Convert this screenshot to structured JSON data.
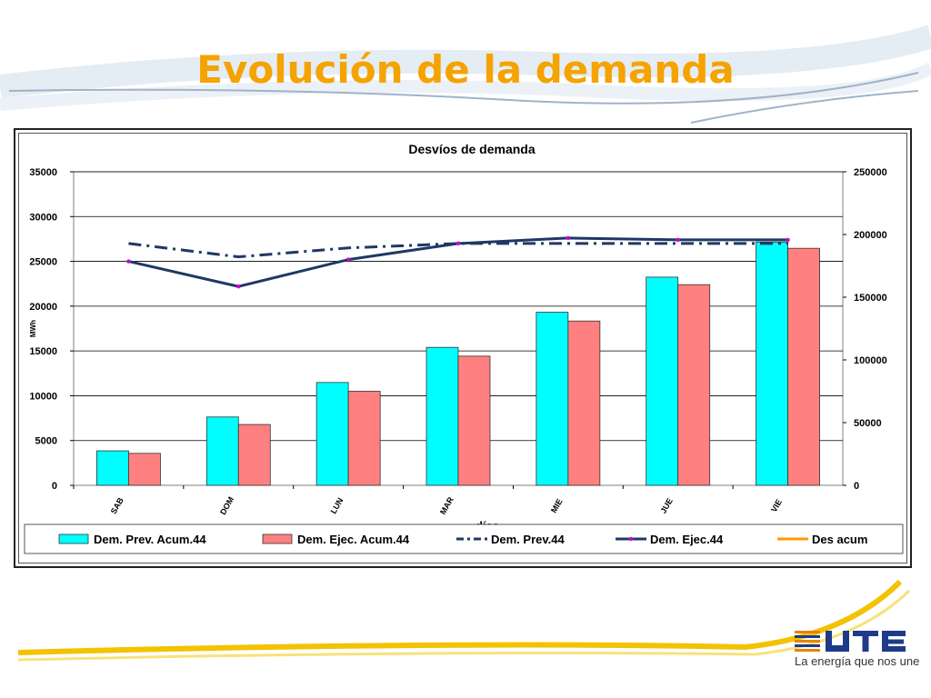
{
  "slide": {
    "title": "Evolución de la demanda"
  },
  "brand": {
    "name": "UTE",
    "tagline": "La energía que nos une",
    "colors": {
      "title": "#f5a300",
      "stripe": "#f3c200",
      "logo_blue": "#1f3a8a",
      "logo_orange": "#e8830a"
    }
  },
  "chart_data": {
    "type": "bar",
    "title": "Desvíos de demanda",
    "xlabel": "días",
    "ylabel": "MWh",
    "categories": [
      "SAB",
      "DOM",
      "LUN",
      "MAR",
      "MIE",
      "JUE",
      "VIE"
    ],
    "ylim": [
      0,
      35000
    ],
    "y_ticks": [
      0,
      5000,
      10000,
      15000,
      20000,
      25000,
      30000,
      35000
    ],
    "y2lim": [
      0,
      250000
    ],
    "y2_ticks": [
      0,
      50000,
      100000,
      150000,
      200000,
      250000
    ],
    "grid": true,
    "legend_position": "bottom",
    "bar_series": [
      {
        "name": "Dem. Prev. Acum.44",
        "color": "#00ffff",
        "axis": "right",
        "values": [
          27500,
          54500,
          82000,
          110000,
          138000,
          166000,
          194000
        ]
      },
      {
        "name": "Dem. Ejec. Acum.44",
        "color": "#ff8080",
        "axis": "right",
        "values": [
          25500,
          48500,
          75000,
          103000,
          131000,
          160000,
          189000
        ]
      }
    ],
    "line_series": [
      {
        "name": "Dem. Prev.44",
        "color": "#1f3864",
        "axis": "left",
        "style": "dash-dot",
        "values": [
          27000,
          25500,
          26500,
          27000,
          27000,
          27000,
          27000
        ]
      },
      {
        "name": "Dem. Ejec.44",
        "color": "#1f3864",
        "axis": "left",
        "style": "solid",
        "marker_color": "#cc00cc",
        "values": [
          25000,
          22200,
          25200,
          27000,
          27600,
          27400,
          27400
        ]
      },
      {
        "name": "Des acum",
        "color": "#ff9900",
        "axis": "left",
        "style": "solid",
        "values": []
      }
    ]
  }
}
